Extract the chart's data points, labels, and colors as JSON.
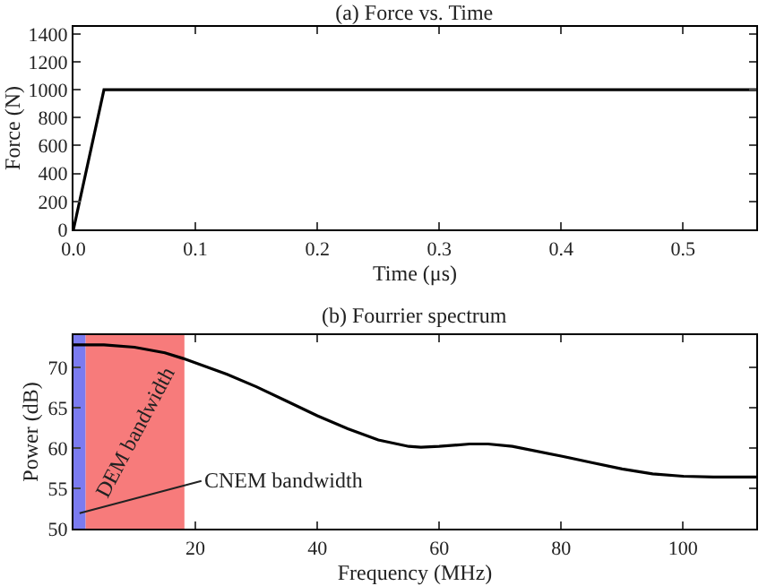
{
  "chart_data": [
    {
      "type": "line",
      "title": "(a) Force vs. Time",
      "xlabel": "Time (μs)",
      "ylabel": "Force (N)",
      "x": [
        0,
        0.025,
        0.56
      ],
      "series": [
        {
          "color": "#000000",
          "values": [
            0,
            1000,
            1000
          ]
        }
      ],
      "xlim": [
        0,
        0.56
      ],
      "xticks": [
        {
          "value": 0,
          "label": "0.0"
        },
        0.1,
        0.2,
        0.3,
        0.4,
        0.5
      ],
      "ylim": [
        0,
        1450
      ],
      "yticks": [
        0,
        200,
        400,
        600,
        800,
        1000,
        1200,
        1400
      ],
      "grid": false
    },
    {
      "type": "line",
      "title": "(b) Fourrier spectrum",
      "xlabel": "Frequency (MHz)",
      "ylabel": "Power (dB)",
      "x": [
        0,
        5,
        10,
        15,
        18,
        25,
        30,
        35,
        40,
        45,
        50,
        55,
        57,
        60,
        65,
        68,
        72,
        80,
        85,
        90,
        95,
        100,
        105,
        112
      ],
      "series": [
        {
          "color": "#000000",
          "values": [
            72.8,
            72.8,
            72.5,
            71.8,
            71.1,
            69.2,
            67.6,
            65.8,
            64.0,
            62.4,
            61.0,
            60.2,
            60.1,
            60.2,
            60.5,
            60.5,
            60.2,
            59.0,
            58.2,
            57.4,
            56.8,
            56.5,
            56.4,
            56.4
          ]
        }
      ],
      "bands": [
        {
          "axis": "x",
          "from": 0,
          "to": 2,
          "label": "CNEM bandwidth",
          "color": "#7b7bf0"
        },
        {
          "axis": "x",
          "from": 2,
          "to": 18.2,
          "label": "DEM bandwidth",
          "color": "#f77b7b"
        }
      ],
      "xlim": [
        0,
        112
      ],
      "xticks": [
        20,
        40,
        60,
        80,
        100
      ],
      "ylim": [
        50,
        74
      ],
      "yticks": [
        50,
        55,
        60,
        65,
        70
      ],
      "grid": false
    }
  ]
}
